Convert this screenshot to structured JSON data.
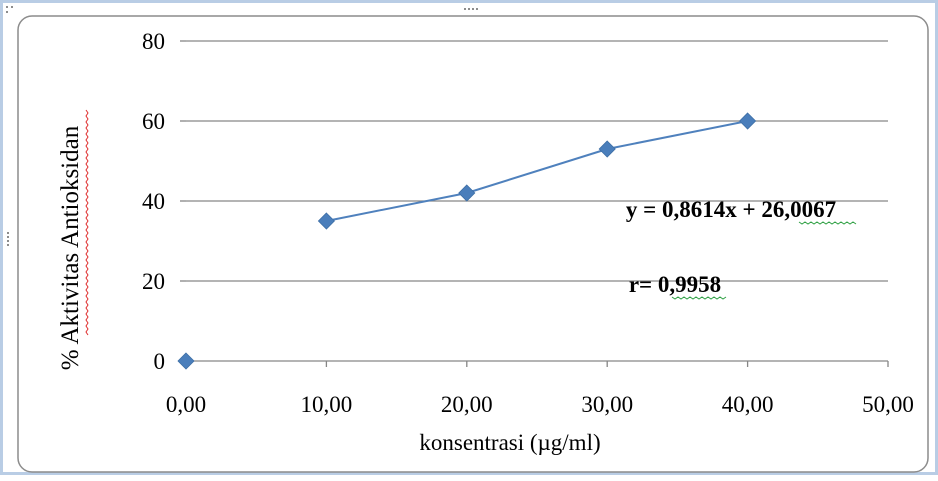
{
  "chart_data": {
    "type": "line",
    "x": [
      0,
      10,
      20,
      30,
      40
    ],
    "values": [
      0,
      35,
      42,
      53,
      60
    ],
    "xlabel": "konsentrasi (µg/ml)",
    "ylabel": "% Aktivitas Antioksidan",
    "xlim": [
      0,
      50
    ],
    "ylim": [
      0,
      80
    ],
    "x_ticks": [
      "0,00",
      "10,00",
      "20,00",
      "30,00",
      "40,00",
      "50,00"
    ],
    "y_ticks": [
      "0",
      "20",
      "40",
      "60",
      "80"
    ],
    "grid": "horizontal",
    "legend": "none",
    "annotations": [
      "y = 0,8614x + 26,0067",
      "r= 0,9958"
    ],
    "series_color": "#4f81bd",
    "marker_color": "#4a7ebb"
  }
}
